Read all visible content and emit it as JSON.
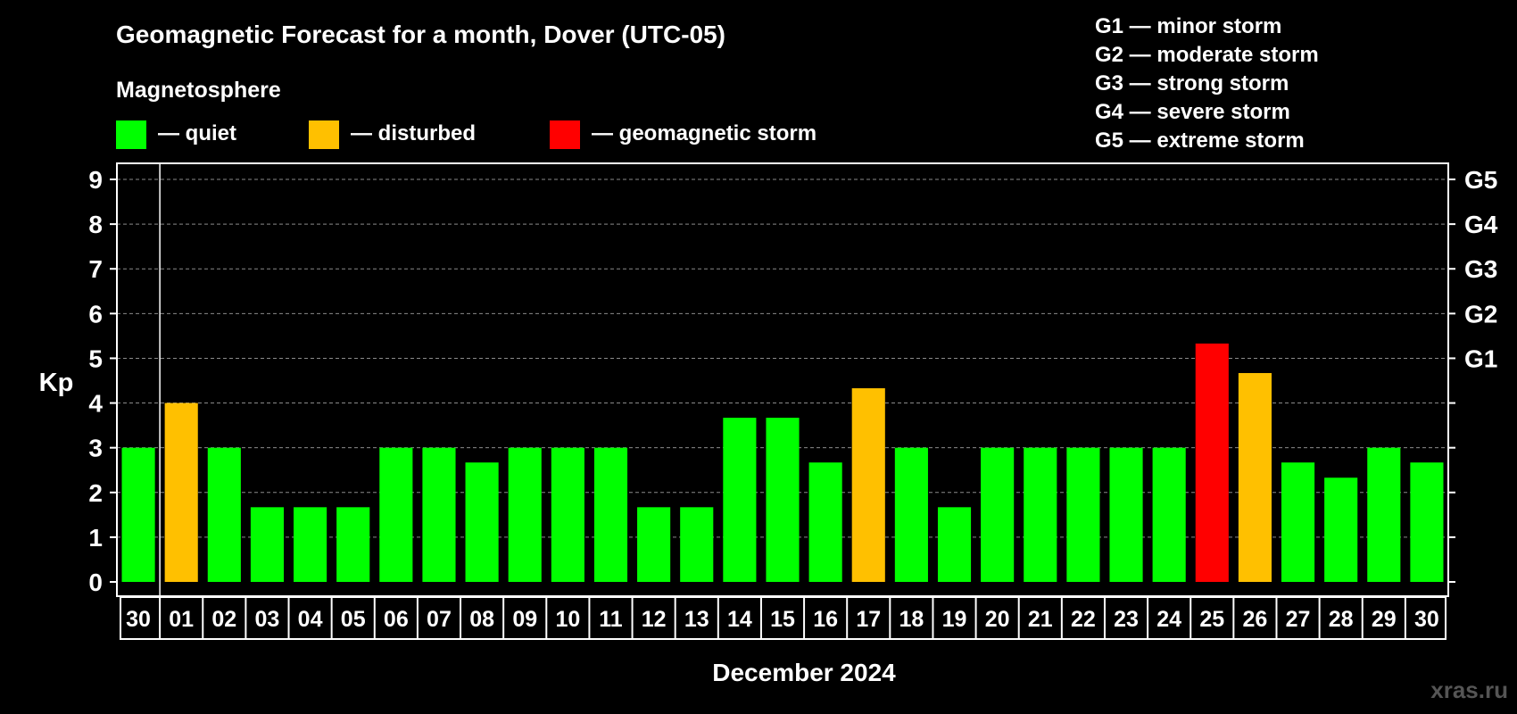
{
  "chart_data": {
    "type": "bar",
    "title": "Geomagnetic Forecast for a month, Dover (UTC-05)",
    "legend_title": "Magnetosphere",
    "legend": [
      {
        "label": "— quiet",
        "color": "#00ff00"
      },
      {
        "label": "— disturbed",
        "color": "#ffc000"
      },
      {
        "label": "— geomagnetic storm",
        "color": "#ff0000"
      }
    ],
    "storm_scale": [
      "G1 — minor storm",
      "G2 — moderate storm",
      "G3 — strong storm",
      "G4 — severe storm",
      "G5 — extreme storm"
    ],
    "ylabel": "Kp",
    "xlabel": "December 2024",
    "ylim": [
      0,
      9
    ],
    "y_ticks": [
      "0",
      "1",
      "2",
      "3",
      "4",
      "5",
      "6",
      "7",
      "8",
      "9"
    ],
    "right_axis_labels": [
      {
        "label": "G1",
        "kp": 5
      },
      {
        "label": "G2",
        "kp": 6
      },
      {
        "label": "G3",
        "kp": 7
      },
      {
        "label": "G4",
        "kp": 8
      },
      {
        "label": "G5",
        "kp": 9
      }
    ],
    "categories": [
      "30",
      "01",
      "02",
      "03",
      "04",
      "05",
      "06",
      "07",
      "08",
      "09",
      "10",
      "11",
      "12",
      "13",
      "14",
      "15",
      "16",
      "17",
      "18",
      "19",
      "20",
      "21",
      "22",
      "23",
      "24",
      "25",
      "26",
      "27",
      "28",
      "29",
      "30"
    ],
    "values": [
      3,
      4,
      3,
      1.67,
      1.67,
      1.67,
      3,
      3,
      2.67,
      3,
      3,
      3,
      1.67,
      1.67,
      3.67,
      3.67,
      2.67,
      4.33,
      3,
      1.67,
      3,
      3,
      3,
      3,
      3,
      5.33,
      4.67,
      2.67,
      2.33,
      3,
      2.67
    ],
    "status": [
      "quiet",
      "disturbed",
      "quiet",
      "quiet",
      "quiet",
      "quiet",
      "quiet",
      "quiet",
      "quiet",
      "quiet",
      "quiet",
      "quiet",
      "quiet",
      "quiet",
      "quiet",
      "quiet",
      "quiet",
      "disturbed",
      "quiet",
      "quiet",
      "quiet",
      "quiet",
      "quiet",
      "quiet",
      "quiet",
      "storm",
      "disturbed",
      "quiet",
      "quiet",
      "quiet",
      "quiet"
    ],
    "colors": {
      "quiet": "#00ff00",
      "disturbed": "#ffc000",
      "storm": "#ff0000"
    },
    "grid": true
  },
  "watermark": "xras.ru"
}
